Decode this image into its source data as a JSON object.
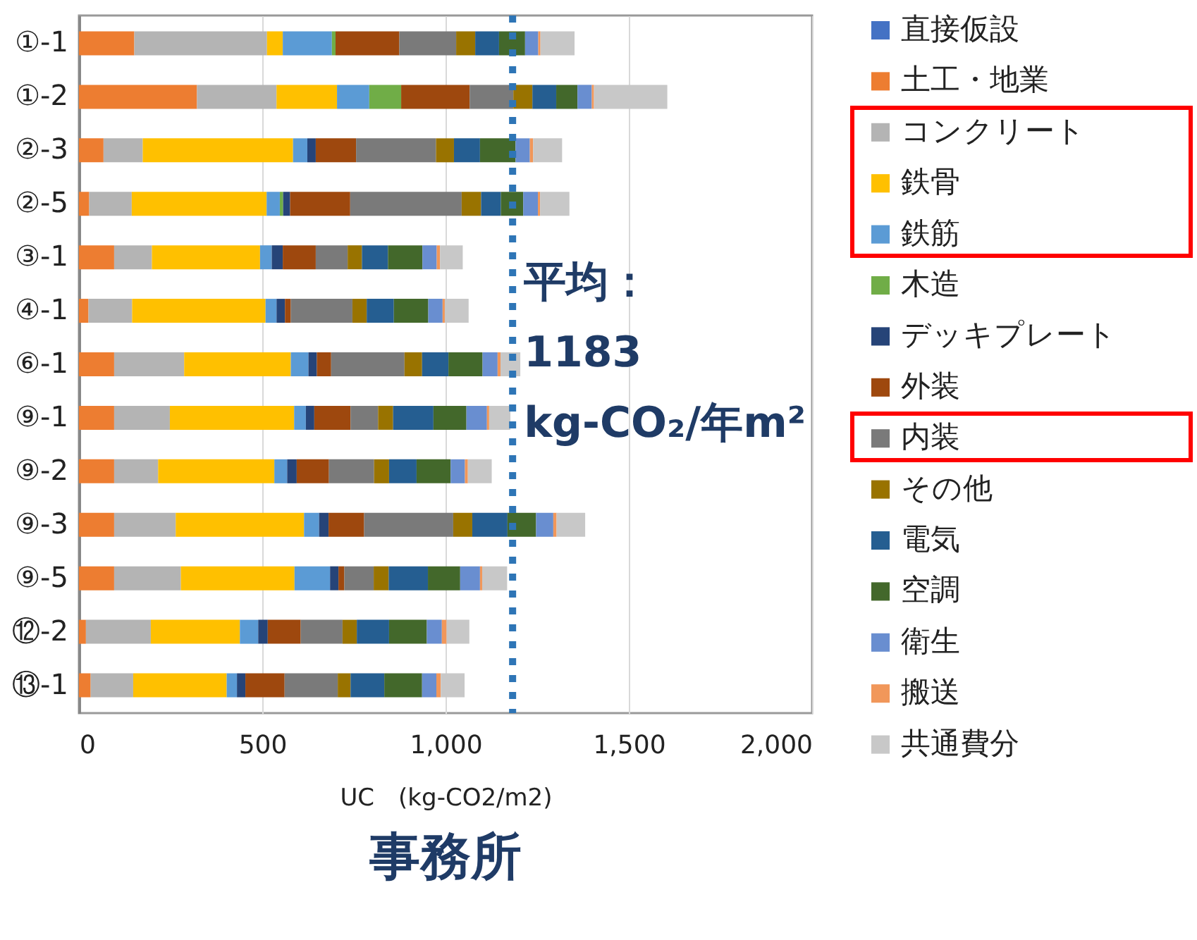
{
  "chart_data": {
    "type": "bar",
    "title": "事務所",
    "xlabel": "UC　(kg-CO2/m2)",
    "orientation": "horizontal",
    "stacked": true,
    "categories": [
      "①-1",
      "①-2",
      "②-3",
      "②-5",
      "③-1",
      "④-1",
      "⑥-1",
      "⑨-1",
      "⑨-2",
      "⑨-3",
      "⑨-5",
      "⑫-2",
      "⑬-1"
    ],
    "series": [
      {
        "name": "直接仮設",
        "color": "#4472c4",
        "values": [
          0,
          0,
          0,
          0,
          0,
          0,
          0,
          0,
          0,
          0,
          0,
          0,
          0
        ]
      },
      {
        "name": "土工・地業",
        "color": "#ed7d31",
        "values": [
          151,
          322,
          67,
          28,
          96,
          26,
          96,
          96,
          96,
          96,
          96,
          19,
          32
        ]
      },
      {
        "name": "コンクリート",
        "color": "#b4b4b4",
        "values": [
          362,
          217,
          107,
          116,
          103,
          119,
          191,
          152,
          120,
          168,
          182,
          177,
          116
        ]
      },
      {
        "name": "鉄骨",
        "color": "#ffc000",
        "values": [
          43,
          165,
          410,
          368,
          295,
          364,
          291,
          339,
          317,
          350,
          310,
          243,
          255
        ]
      },
      {
        "name": "鉄筋",
        "color": "#5b9bd5",
        "values": [
          134,
          88,
          39,
          36,
          32,
          30,
          48,
          32,
          35,
          41,
          97,
          50,
          28
        ]
      },
      {
        "name": "木造",
        "color": "#70ad47",
        "values": [
          10,
          87,
          0,
          9,
          0,
          0,
          0,
          0,
          0,
          0,
          0,
          0,
          0
        ]
      },
      {
        "name": "デッキプレート",
        "color": "#264478",
        "values": [
          0,
          0,
          23,
          19,
          30,
          23,
          23,
          23,
          26,
          26,
          23,
          26,
          23
        ]
      },
      {
        "name": "外装",
        "color": "#9e480e",
        "values": [
          174,
          187,
          110,
          164,
          90,
          16,
          39,
          99,
          88,
          97,
          16,
          90,
          107
        ]
      },
      {
        "name": "内装",
        "color": "#7a7a7a",
        "values": [
          155,
          119,
          218,
          304,
          87,
          168,
          200,
          75,
          123,
          243,
          80,
          114,
          145
        ]
      },
      {
        "name": "その他",
        "color": "#997300",
        "values": [
          52,
          52,
          49,
          53,
          39,
          39,
          48,
          41,
          41,
          52,
          41,
          39,
          35
        ]
      },
      {
        "name": "電気",
        "color": "#255e91",
        "values": [
          65,
          65,
          71,
          54,
          71,
          74,
          72,
          110,
          75,
          96,
          107,
          88,
          92
        ]
      },
      {
        "name": "空調",
        "color": "#43682b",
        "values": [
          71,
          58,
          97,
          61,
          94,
          94,
          93,
          90,
          93,
          78,
          88,
          103,
          103
        ]
      },
      {
        "name": "衛生",
        "color": "#698ed0",
        "values": [
          36,
          39,
          39,
          40,
          39,
          39,
          41,
          56,
          39,
          47,
          54,
          41,
          39
        ]
      },
      {
        "name": "搬送",
        "color": "#f1975a",
        "values": [
          6,
          6,
          9,
          6,
          9,
          6,
          8,
          6,
          8,
          9,
          6,
          13,
          12
        ]
      },
      {
        "name": "共通費分",
        "color": "#c8c8c8",
        "values": [
          93,
          200,
          79,
          80,
          62,
          65,
          54,
          58,
          65,
          78,
          68,
          62,
          65
        ]
      }
    ],
    "xlim": [
      0,
      2000
    ],
    "xticks": [
      0,
      500,
      {
        "value": 1000,
        "label": "1,000"
      },
      {
        "value": 1500,
        "label": "1,500"
      },
      {
        "value": 2000,
        "label": "2,000"
      }
    ],
    "grid": "x",
    "legend": "right",
    "ref_lines": [
      {
        "axis": "x",
        "value": 1183,
        "label": "平均：\n1183\nkg-CO₂/年m²",
        "color": "#2e75b6",
        "line_style": "dotted"
      }
    ]
  }
}
